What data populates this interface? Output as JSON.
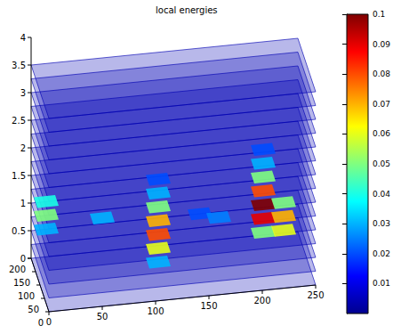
{
  "chart_data": {
    "type": "contourslice",
    "title": "local energies",
    "xlim": [
      0,
      250
    ],
    "xticks": [
      0,
      50,
      100,
      150,
      200,
      250
    ],
    "ylim": [
      0,
      200
    ],
    "yticks": [
      0,
      50,
      100,
      150,
      200
    ],
    "zlim": [
      0,
      4
    ],
    "zticks": [
      0,
      0.5,
      1,
      1.5,
      2,
      2.5,
      3,
      3.5,
      4
    ],
    "slices": [
      0,
      0.25,
      0.5,
      0.75,
      1,
      1.25,
      1.5,
      1.75,
      2,
      2.25,
      2.5,
      2.75,
      3,
      3.25,
      3.5
    ],
    "base_energy": 0.004,
    "cells": [
      [
        110,
        90,
        0.25,
        0.03
      ],
      [
        110,
        90,
        0.5,
        0.06
      ],
      [
        110,
        90,
        0.75,
        0.08
      ],
      [
        110,
        90,
        1,
        0.07
      ],
      [
        110,
        90,
        1.25,
        0.05
      ],
      [
        110,
        90,
        1.5,
        0.03
      ],
      [
        110,
        90,
        1.75,
        0.02
      ],
      [
        210,
        110,
        0.5,
        0.05
      ],
      [
        210,
        110,
        0.75,
        0.09
      ],
      [
        210,
        110,
        1,
        0.1
      ],
      [
        210,
        110,
        1.25,
        0.08
      ],
      [
        210,
        110,
        1.5,
        0.05
      ],
      [
        210,
        110,
        1.75,
        0.03
      ],
      [
        210,
        110,
        2,
        0.02
      ],
      [
        225,
        60,
        0.75,
        0.06
      ],
      [
        225,
        60,
        1,
        0.07
      ],
      [
        225,
        60,
        1.25,
        0.05
      ],
      [
        10,
        150,
        0.75,
        0.03
      ],
      [
        10,
        150,
        1,
        0.05
      ],
      [
        10,
        150,
        1.25,
        0.04
      ],
      [
        60,
        120,
        1,
        0.03
      ],
      [
        150,
        100,
        1,
        0.02
      ],
      [
        170,
        130,
        0.75,
        0.025
      ]
    ],
    "colorbar": {
      "range": [
        0,
        0.1
      ],
      "ticks": [
        0.01,
        0.02,
        0.03,
        0.04,
        0.05,
        0.06,
        0.07,
        0.08,
        0.09,
        0.1
      ]
    }
  }
}
